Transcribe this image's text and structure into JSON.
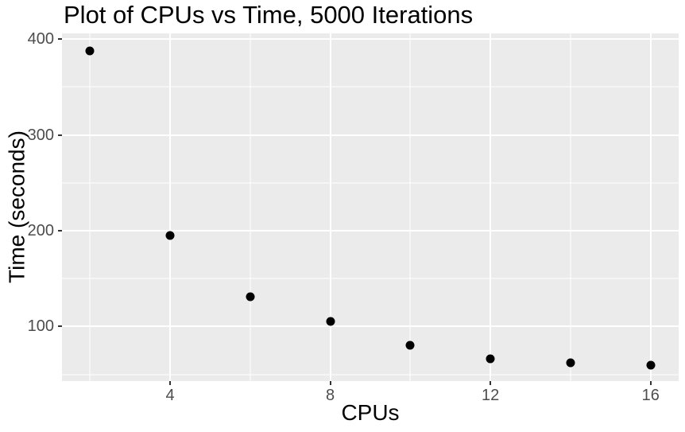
{
  "chart_data": {
    "type": "scatter",
    "title": "Plot of CPUs vs Time, 5000 Iterations",
    "xlabel": "CPUs",
    "ylabel": "Time (seconds)",
    "x": [
      2,
      4,
      6,
      8,
      10,
      12,
      14,
      16
    ],
    "y": [
      388,
      195,
      131,
      105,
      80,
      66,
      62,
      60
    ],
    "xlim": [
      1.3,
      16.7
    ],
    "ylim": [
      43,
      406
    ],
    "x_major_ticks": [
      4,
      8,
      12,
      16
    ],
    "x_minor_gridlines": [
      2,
      6,
      10,
      14
    ],
    "y_major_ticks": [
      100,
      200,
      300,
      400
    ],
    "y_minor_gridlines": [
      50,
      150,
      250,
      350
    ],
    "grid": "major-and-minor",
    "legend": "none",
    "colors": {
      "panel_bg": "#EBEBEB",
      "gridline": "#FFFFFF",
      "point": "#000000",
      "tick_mark": "#333333",
      "tick_label": "#4D4D4D",
      "text": "#000000",
      "background": "#FFFFFF"
    }
  }
}
